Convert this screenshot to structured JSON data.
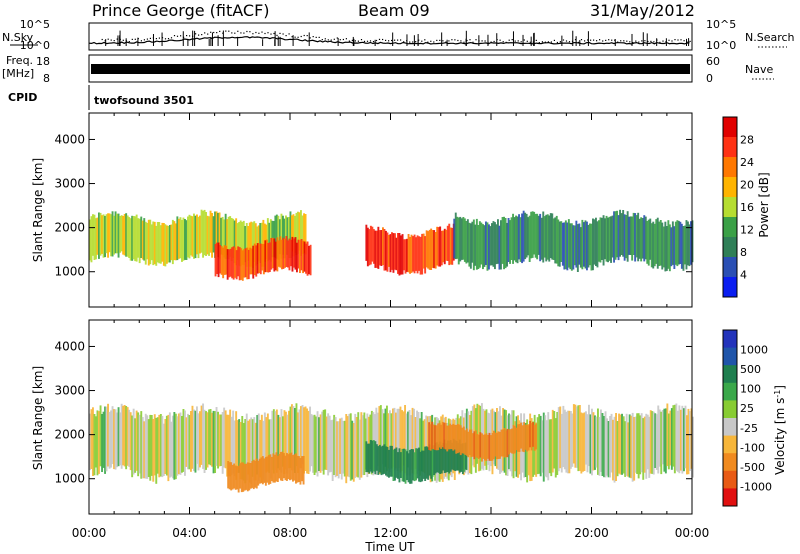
{
  "header": {
    "station": "Prince George (fitACF)",
    "beam": "Beam 09",
    "date": "31/May/2012"
  },
  "params_panel": {
    "nsky_label": "N.Sky",
    "nsearch_label": "N.Search",
    "freq_label_top": "Freq.",
    "freq_label_unit": "[MHz]",
    "nave_label": "Nave",
    "cpid_label": "CPID",
    "cpid_value": "twofsound 3501",
    "noise_ticks": [
      "10^5",
      "10^0"
    ],
    "freq_ticks": [
      "18",
      "8"
    ],
    "nave_ticks": [
      "60",
      "0"
    ]
  },
  "x_axis": {
    "ticks": [
      "00:00",
      "04:00",
      "08:00",
      "12:00",
      "16:00",
      "20:00",
      "00:00"
    ],
    "label": "Time UT"
  },
  "colors": {
    "power_scale": [
      "#0a1ef0",
      "#2a4fb4",
      "#2f7f57",
      "#3aa046",
      "#b6dd31",
      "#ffb400",
      "#ff7800",
      "#ff3214",
      "#e10000"
    ],
    "velocity_scale": [
      "#2233bb",
      "#1f55aa",
      "#1f7f4f",
      "#3aa84a",
      "#88cc33",
      "#c8c8c8",
      "#f7b63a",
      "#f08a1f",
      "#e85a14",
      "#e11010"
    ]
  },
  "chart_data": [
    {
      "type": "heatmap",
      "title": "",
      "xlabel": "Time UT",
      "ylabel": "Slant Range [km]",
      "x_range_hours": [
        0,
        24
      ],
      "ylim": [
        200,
        4600
      ],
      "y_ticks": [
        1000,
        2000,
        3000,
        4000
      ],
      "colorbar_label": "Power [dB]",
      "colorbar_ticks": [
        4,
        8,
        12,
        16,
        20,
        24,
        28
      ],
      "colorbar_range": [
        0,
        32
      ],
      "bands_approx": [
        {
          "t_start": 0.0,
          "t_end": 8.6,
          "range_low": 1200,
          "range_high": 2300,
          "power_db": 16
        },
        {
          "t_start": 5.0,
          "t_end": 8.8,
          "range_low": 900,
          "range_high": 1700,
          "power_db": 26
        },
        {
          "t_start": 11.0,
          "t_end": 14.5,
          "range_low": 1000,
          "range_high": 2000,
          "power_db": 27
        },
        {
          "t_start": 14.5,
          "t_end": 24.0,
          "range_low": 1100,
          "range_high": 2300,
          "power_db": 10
        }
      ]
    },
    {
      "type": "heatmap",
      "title": "",
      "xlabel": "Time UT",
      "ylabel": "Slant Range [km]",
      "x_range_hours": [
        0,
        24
      ],
      "ylim": [
        200,
        4600
      ],
      "y_ticks": [
        1000,
        2000,
        3000,
        4000
      ],
      "colorbar_label": "Velocity [m s^-1]",
      "colorbar_ticks": [
        1000,
        500,
        100,
        25,
        -25,
        -100,
        -500,
        -1000
      ],
      "bands_approx": [
        {
          "t_start": 0.0,
          "t_end": 24.0,
          "range_low": 1000,
          "range_high": 2600,
          "velocity_ms": 0
        },
        {
          "t_start": 5.5,
          "t_end": 8.5,
          "range_low": 800,
          "range_high": 1500,
          "velocity_ms": -200
        },
        {
          "t_start": 11.0,
          "t_end": 15.0,
          "range_low": 1000,
          "range_high": 1800,
          "velocity_ms": 150
        },
        {
          "t_start": 13.5,
          "t_end": 17.8,
          "range_low": 1500,
          "range_high": 2200,
          "velocity_ms": -250
        }
      ]
    }
  ]
}
